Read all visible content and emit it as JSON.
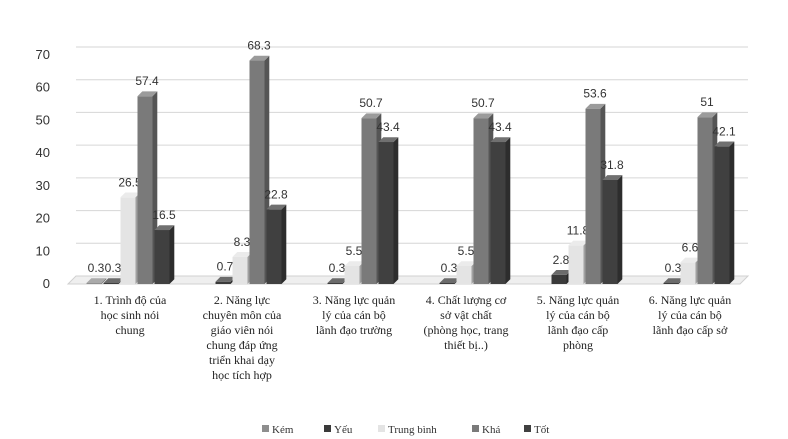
{
  "chart_data": {
    "type": "bar",
    "render": "3d-column",
    "ylim": [
      0,
      70
    ],
    "yticks": [
      0,
      10,
      20,
      30,
      40,
      50,
      60,
      70
    ],
    "grid": true,
    "legend_position": "bottom",
    "categories": [
      [
        "1. Trình độ của",
        "học sinh nói",
        "chung"
      ],
      [
        "2. Năng lực",
        "chuyên môn của",
        "giáo viên nói",
        "chung đáp ứng",
        "triển khai dạy",
        "học tích hợp"
      ],
      [
        "3. Năng lực quản",
        "lý của cán bộ",
        "lãnh đạo trường"
      ],
      [
        "4. Chất lượng cơ",
        "sở vật chất",
        "(phòng học, trang",
        "thiết bị..)"
      ],
      [
        "5. Năng lực quản",
        "lý của cán bộ",
        "lãnh đạo cấp",
        "phòng"
      ],
      [
        "6. Năng lực quản",
        "lý của cán bộ",
        "lãnh đạo cấp sở"
      ]
    ],
    "series": [
      {
        "name": "Kém",
        "color": "#8e8e8e",
        "values": [
          0.3,
          0,
          0,
          0,
          0,
          0
        ]
      },
      {
        "name": "Yếu",
        "color": "#3a3a3a",
        "values": [
          0.3,
          0.7,
          0.3,
          0.3,
          2.8,
          0.3
        ]
      },
      {
        "name": "Trung bình",
        "color": "#e4e4e4",
        "values": [
          26.5,
          8.3,
          5.5,
          5.5,
          11.8,
          6.6
        ]
      },
      {
        "name": "Khá",
        "color": "#7a7a7a",
        "values": [
          57.4,
          68.3,
          50.7,
          50.7,
          53.6,
          51
        ]
      },
      {
        "name": "Tốt",
        "color": "#404040",
        "values": [
          16.5,
          22.8,
          43.4,
          43.4,
          31.8,
          42.1
        ]
      }
    ],
    "data_labels": [
      [
        "0.3",
        "0.3",
        "26.5",
        "57.4",
        "16.5"
      ],
      [
        "",
        "0.7",
        "8.3",
        "68.3",
        "22.8"
      ],
      [
        "",
        "0.3",
        "5.5",
        "50.7",
        "43.4"
      ],
      [
        "",
        "0.3",
        "5.5",
        "50.7",
        "43.4"
      ],
      [
        "",
        "2.8",
        "11.8",
        "53.6",
        "31.8"
      ],
      [
        "",
        "0.3",
        "6.6",
        "51",
        "42.1"
      ]
    ]
  }
}
